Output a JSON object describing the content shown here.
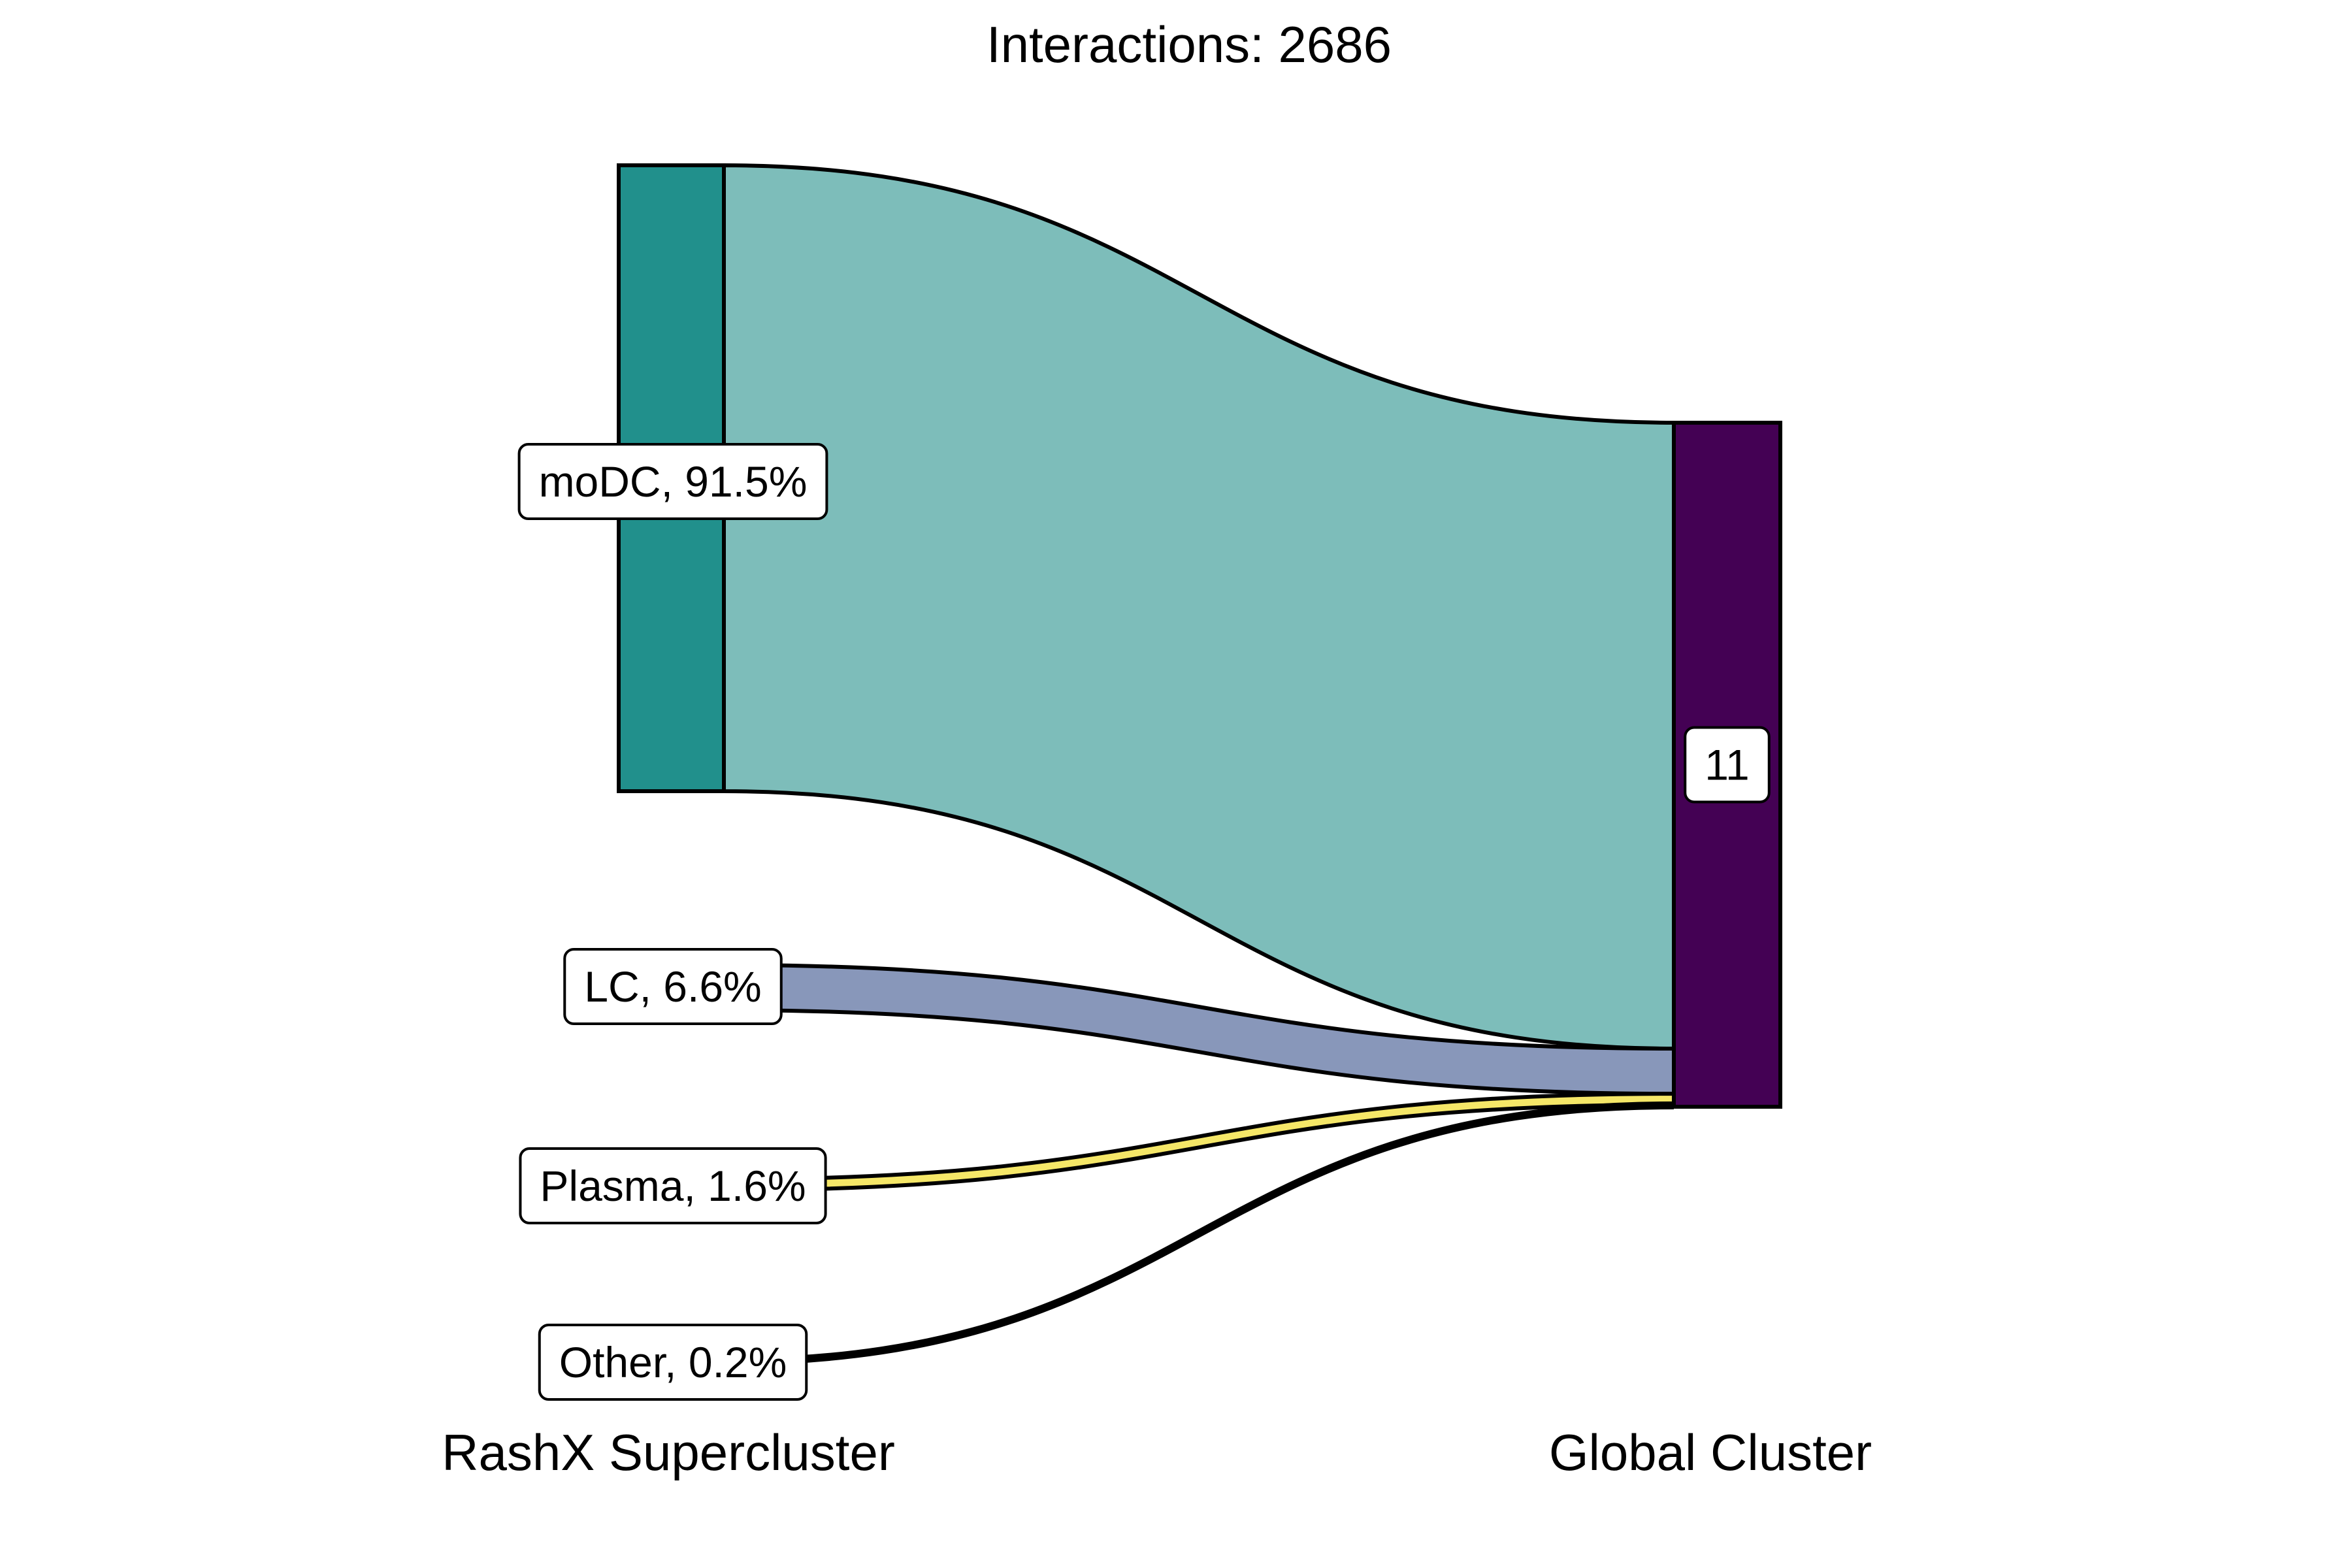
{
  "chart_data": {
    "type": "sankey",
    "title": "Interactions: 2686",
    "axes": {
      "left": "RashX Supercluster",
      "right": "Global Cluster"
    },
    "source_nodes": [
      {
        "label": "moDC, 91.5%",
        "value": 91.5,
        "color": "#21908C"
      },
      {
        "label": "LC, 6.6%",
        "value": 6.6,
        "color": "#8897BA"
      },
      {
        "label": "Plasma, 1.6%",
        "value": 1.6,
        "color": "#F5E768"
      },
      {
        "label": "Other, 0.2%",
        "value": 0.2,
        "color": "#000000"
      }
    ],
    "target_nodes": [
      {
        "label": "11",
        "value": 100,
        "color": "#440154"
      }
    ],
    "flows": [
      {
        "source": "moDC, 91.5%",
        "target": "11",
        "value": 91.5,
        "color": "#7DBDBA"
      },
      {
        "source": "LC, 6.6%",
        "target": "11",
        "value": 6.6,
        "color": "#8897BA"
      },
      {
        "source": "Plasma, 1.6%",
        "target": "11",
        "value": 1.6,
        "color": "#F5E768"
      },
      {
        "source": "Other, 0.2%",
        "target": "11",
        "value": 0.2,
        "color": "#000000"
      }
    ]
  }
}
